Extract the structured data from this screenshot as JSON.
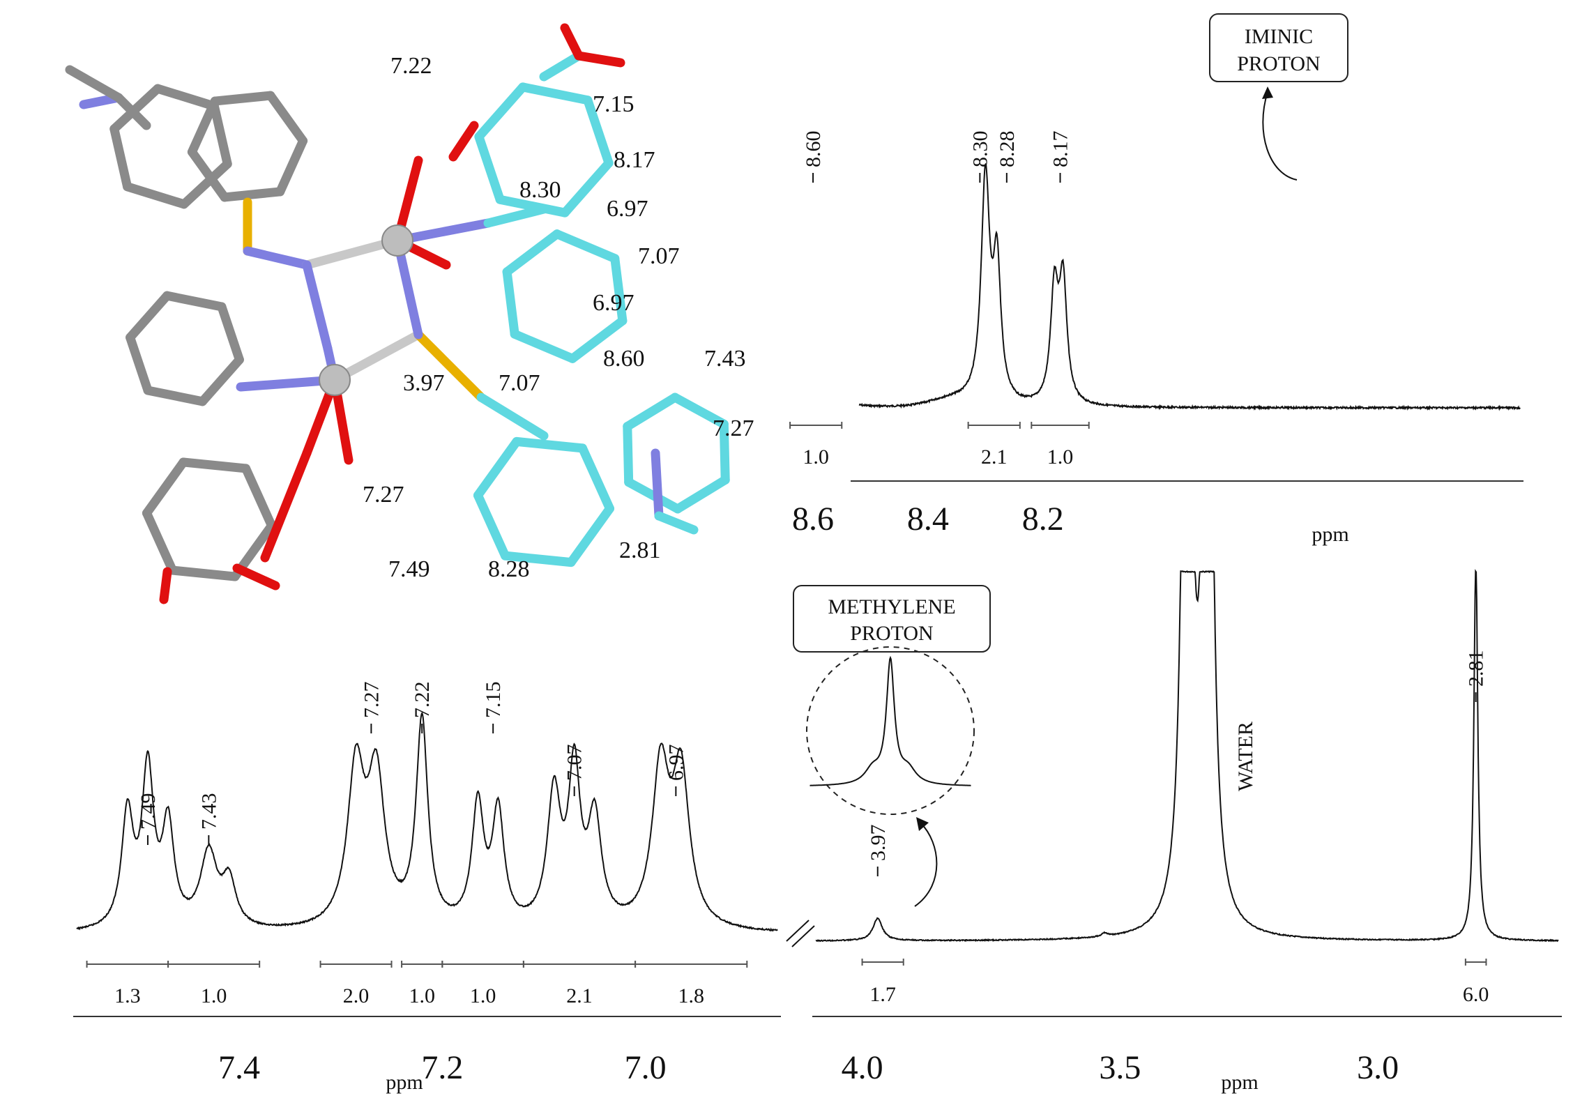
{
  "chart_data": [
    {
      "type": "line",
      "title": "",
      "xlabel": "ppm",
      "xlim": [
        8.52,
        7.37
      ],
      "xticks": [
        8.6,
        8.4,
        8.2
      ],
      "xtick_labels": [
        "8.6",
        "8.4",
        "8.2"
      ],
      "peaks": [
        {
          "x": 8.6,
          "h": 0.48,
          "w": 0.007
        },
        {
          "x": 8.58,
          "h": 0.52,
          "w": 0.007
        },
        {
          "x": 8.3,
          "h": 1.0,
          "w": 0.009
        },
        {
          "x": 8.28,
          "h": 0.6,
          "w": 0.008
        },
        {
          "x": 8.18,
          "h": 0.5,
          "w": 0.008
        },
        {
          "x": 8.165,
          "h": 0.54,
          "w": 0.008
        }
      ],
      "peak_labels": [
        {
          "x": 8.6,
          "text": "8.60"
        },
        {
          "x": 8.3,
          "text": "8.30"
        },
        {
          "x": 8.28,
          "text": "8.28"
        },
        {
          "x": 8.17,
          "text": "8.17"
        }
      ],
      "integrals": [
        {
          "from": 8.64,
          "to": 8.55,
          "text": "1.0"
        },
        {
          "from": 8.33,
          "to": 8.24,
          "text": "2.1"
        },
        {
          "from": 8.22,
          "to": 8.12,
          "text": "1.0"
        }
      ],
      "annotation": {
        "lines": [
          "IMINIC",
          "PROTON"
        ],
        "target_x": 8.3
      }
    },
    {
      "type": "line",
      "title": "",
      "xlabel": "ppm",
      "xlim": [
        7.56,
        6.87
      ],
      "xticks": [
        7.4,
        7.2,
        7.0
      ],
      "xtick_labels": [
        "7.4",
        "7.2",
        "7.0"
      ],
      "peaks": [
        {
          "x": 7.51,
          "h": 0.45,
          "w": 0.007
        },
        {
          "x": 7.49,
          "h": 0.62,
          "w": 0.007
        },
        {
          "x": 7.47,
          "h": 0.4,
          "w": 0.007
        },
        {
          "x": 7.43,
          "h": 0.3,
          "w": 0.01
        },
        {
          "x": 7.41,
          "h": 0.18,
          "w": 0.008
        },
        {
          "x": 7.285,
          "h": 0.62,
          "w": 0.01
        },
        {
          "x": 7.265,
          "h": 0.58,
          "w": 0.01
        },
        {
          "x": 7.22,
          "h": 0.82,
          "w": 0.007
        },
        {
          "x": 7.165,
          "h": 0.48,
          "w": 0.007
        },
        {
          "x": 7.145,
          "h": 0.45,
          "w": 0.007
        },
        {
          "x": 7.09,
          "h": 0.52,
          "w": 0.008
        },
        {
          "x": 7.07,
          "h": 0.6,
          "w": 0.007
        },
        {
          "x": 7.05,
          "h": 0.42,
          "w": 0.008
        },
        {
          "x": 6.985,
          "h": 0.62,
          "w": 0.01
        },
        {
          "x": 6.965,
          "h": 0.6,
          "w": 0.01
        }
      ],
      "peak_labels": [
        {
          "x": 7.49,
          "text": "7.49"
        },
        {
          "x": 7.43,
          "text": "7.43"
        },
        {
          "x": 7.27,
          "text": "7.27"
        },
        {
          "x": 7.22,
          "text": "7.22"
        },
        {
          "x": 7.15,
          "text": "7.15"
        },
        {
          "x": 7.07,
          "text": "7.07"
        },
        {
          "x": 6.97,
          "text": "6.97"
        }
      ],
      "integrals": [
        {
          "from": 7.55,
          "to": 7.47,
          "text": "1.3"
        },
        {
          "from": 7.47,
          "to": 7.38,
          "text": "1.0"
        },
        {
          "from": 7.32,
          "to": 7.25,
          "text": "2.0"
        },
        {
          "from": 7.24,
          "to": 7.2,
          "text": "1.0"
        },
        {
          "from": 7.2,
          "to": 7.12,
          "text": "1.0"
        },
        {
          "from": 7.12,
          "to": 7.01,
          "text": "2.1"
        },
        {
          "from": 7.01,
          "to": 6.9,
          "text": "1.8"
        }
      ]
    },
    {
      "type": "line",
      "title": "",
      "xlabel": "ppm",
      "xlim": [
        4.09,
        2.65
      ],
      "xticks": [
        4.0,
        3.5,
        3.0
      ],
      "xtick_labels": [
        "4.0",
        "3.5",
        "3.0"
      ],
      "peaks": [
        {
          "x": 3.97,
          "h": 0.055,
          "w": 0.011
        },
        {
          "x": 3.53,
          "h": 0.008,
          "w": 0.007
        },
        {
          "x": 3.37,
          "h": 2.5,
          "w": 0.009
        },
        {
          "x": 3.33,
          "h": 2.5,
          "w": 0.009
        },
        {
          "x": 2.81,
          "h": 0.95,
          "w": 0.0045
        }
      ],
      "peak_labels": [
        {
          "x": 3.97,
          "text": "3.97"
        },
        {
          "x": 2.81,
          "text": "2.81"
        }
      ],
      "integrals": [
        {
          "from": 4.0,
          "to": 3.92,
          "text": "1.7"
        },
        {
          "from": 2.83,
          "to": 2.79,
          "text": "6.0"
        }
      ],
      "water_label": "WATER",
      "annotation": {
        "lines": [
          "METHYLENE",
          "PROTON"
        ],
        "target_x": 3.97
      }
    }
  ],
  "structure": {
    "shift_labels": [
      "7.22",
      "7.15",
      "8.17",
      "8.30",
      "6.97",
      "7.07",
      "6.97",
      "8.60",
      "7.43",
      "3.97",
      "7.07",
      "7.27",
      "7.27",
      "7.49",
      "8.28",
      "2.81"
    ]
  }
}
